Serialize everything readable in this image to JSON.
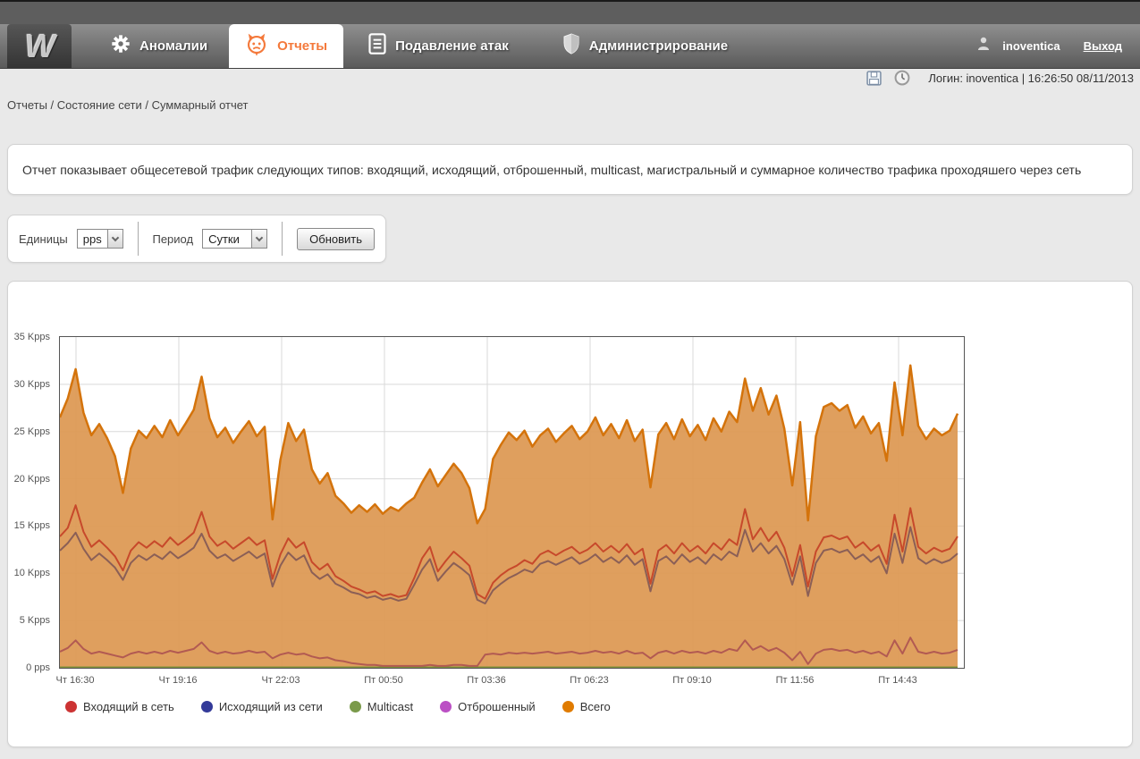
{
  "header": {
    "logo": "W",
    "tabs": [
      {
        "label": "Аномалии",
        "icon": "gear-icon",
        "active": false
      },
      {
        "label": "Отчеты",
        "icon": "devil-icon",
        "active": true
      },
      {
        "label": "Подавление атак",
        "icon": "document-icon",
        "active": false
      },
      {
        "label": "Администрирование",
        "icon": "shield-icon",
        "active": false
      }
    ],
    "user": "inoventica",
    "logout_label": "Выход"
  },
  "subheader": {
    "login_info": "Логин: inoventica | 16:26:50 08/11/2013"
  },
  "breadcrumb": "Отчеты / Состояние сети / Суммарный отчет",
  "description": "Отчет показывает общесетевой трафик следующих типов: входящий, исходящий, отброшенный, multicast, магистральный и суммарное количество трафика проходяшего через сеть",
  "controls": {
    "units_label": "Единицы",
    "units_value": "pps",
    "period_label": "Период",
    "period_value": "Сутки",
    "refresh_label": "Обновить"
  },
  "chart_data": {
    "type": "area",
    "unit": "Kpps",
    "ylim": [
      0,
      35
    ],
    "grid": true,
    "legend_position": "bottom",
    "y_ticks": [
      "0 pps",
      "5 Kpps",
      "10 Kpps",
      "15 Kpps",
      "20 Kpps",
      "25 Kpps",
      "30 Kpps",
      "35 Kpps"
    ],
    "y_tick_values": [
      0,
      5,
      10,
      15,
      20,
      25,
      30,
      35
    ],
    "x_ticks": [
      "Чт 16:30",
      "Чт 19:16",
      "Чт 22:03",
      "Пт 00:50",
      "Пт 03:36",
      "Пт 06:23",
      "Пт 09:10",
      "Пт 11:56",
      "Пт 14:43"
    ],
    "colors": {
      "grid": "#d9d9d9",
      "plot_border": "#555555",
      "axis_text": "#555555"
    },
    "series": [
      {
        "name": "Входящий в сеть",
        "color": "#cc3333",
        "line_color": "#c7492b",
        "values": [
          13.9,
          14.8,
          17.2,
          14.4,
          12.8,
          13.5,
          12.7,
          11.8,
          10.3,
          12.4,
          13.3,
          12.7,
          13.4,
          12.8,
          13.8,
          13.0,
          13.6,
          14.3,
          16.5,
          13.9,
          12.9,
          13.4,
          12.6,
          13.2,
          13.8,
          13.0,
          13.5,
          9.4,
          12.0,
          13.7,
          12.7,
          13.3,
          11.2,
          10.4,
          11.0,
          9.7,
          9.2,
          8.6,
          8.3,
          7.9,
          8.1,
          7.6,
          7.8,
          7.5,
          7.7,
          9.5,
          11.6,
          12.8,
          10.2,
          11.3,
          12.3,
          11.6,
          10.8,
          7.8,
          7.3,
          9.0,
          9.8,
          10.4,
          10.8,
          11.4,
          11.0,
          12.0,
          12.4,
          11.9,
          12.4,
          12.8,
          12.1,
          12.5,
          13.2,
          12.3,
          12.9,
          12.2,
          13.1,
          12.0,
          12.6,
          8.9,
          12.4,
          13.0,
          12.1,
          13.2,
          12.3,
          12.9,
          12.1,
          13.2,
          12.5,
          13.6,
          13.0,
          16.8,
          13.6,
          14.8,
          13.4,
          14.4,
          12.7,
          9.7,
          13.0,
          8.6,
          12.3,
          13.8,
          14.0,
          13.6,
          13.9,
          12.7,
          13.3,
          12.4,
          13.0,
          11.0,
          16.2,
          12.3,
          16.9,
          12.8,
          12.1,
          12.7,
          12.3,
          12.6,
          13.9
        ]
      },
      {
        "name": "Исходящий из сети",
        "color": "#333a99",
        "line_color": "#8b5f56",
        "values": [
          12.4,
          13.2,
          14.3,
          12.6,
          11.4,
          12.1,
          11.4,
          10.6,
          9.3,
          11.1,
          11.9,
          11.4,
          12.0,
          11.5,
          12.3,
          11.6,
          12.1,
          12.7,
          14.2,
          12.4,
          11.6,
          12.0,
          11.3,
          11.8,
          12.3,
          11.6,
          12.1,
          8.6,
          10.8,
          12.2,
          11.4,
          11.9,
          10.1,
          9.4,
          9.9,
          8.9,
          8.5,
          8.0,
          7.8,
          7.4,
          7.6,
          7.2,
          7.4,
          7.1,
          7.3,
          8.8,
          10.4,
          11.5,
          9.2,
          10.2,
          11.1,
          10.5,
          9.8,
          7.2,
          6.8,
          8.2,
          8.9,
          9.5,
          9.9,
          10.4,
          10.1,
          11.0,
          11.3,
          10.9,
          11.3,
          11.7,
          11.0,
          11.4,
          12.0,
          11.2,
          11.7,
          11.1,
          11.9,
          10.9,
          11.5,
          8.1,
          11.3,
          11.8,
          11.0,
          12.0,
          11.2,
          11.7,
          11.0,
          12.0,
          11.4,
          12.3,
          11.8,
          14.6,
          12.3,
          13.2,
          12.1,
          12.9,
          11.5,
          8.8,
          11.8,
          7.6,
          11.1,
          12.4,
          12.6,
          12.2,
          12.5,
          11.5,
          12.0,
          11.2,
          11.8,
          10.0,
          14.2,
          11.1,
          14.9,
          11.6,
          11.0,
          11.5,
          11.1,
          11.4,
          12.1
        ]
      },
      {
        "name": "Multicast",
        "color": "#7a9a4a",
        "line_color": "#7c8f3a",
        "constant": 0.05
      },
      {
        "name": "Отброшенный",
        "color": "#bb4fc4",
        "line_color": "#b25a52",
        "values": [
          1.7,
          2.1,
          2.9,
          2.0,
          1.5,
          1.7,
          1.5,
          1.3,
          1.1,
          1.5,
          1.7,
          1.5,
          1.7,
          1.5,
          1.8,
          1.6,
          1.8,
          2.0,
          2.7,
          1.8,
          1.5,
          1.7,
          1.5,
          1.6,
          1.8,
          1.6,
          1.7,
          1.0,
          1.4,
          1.6,
          1.4,
          1.5,
          1.2,
          1.0,
          1.1,
          0.8,
          0.7,
          0.5,
          0.4,
          0.3,
          0.3,
          0.2,
          0.2,
          0.2,
          0.2,
          0.2,
          0.2,
          0.3,
          0.2,
          0.2,
          0.3,
          0.3,
          0.2,
          0.2,
          1.4,
          1.5,
          1.4,
          1.6,
          1.5,
          1.6,
          1.5,
          1.6,
          1.7,
          1.5,
          1.6,
          1.7,
          1.5,
          1.6,
          1.8,
          1.6,
          1.7,
          1.5,
          1.8,
          1.5,
          1.6,
          1.0,
          1.6,
          1.8,
          1.5,
          1.8,
          1.6,
          1.7,
          1.5,
          1.8,
          1.6,
          2.0,
          1.8,
          2.9,
          1.9,
          2.3,
          1.8,
          2.1,
          1.6,
          0.8,
          1.7,
          0.4,
          1.5,
          1.9,
          2.0,
          1.8,
          1.9,
          1.6,
          1.8,
          1.5,
          1.7,
          1.2,
          2.9,
          1.5,
          3.2,
          1.7,
          1.5,
          1.7,
          1.5,
          1.6,
          1.9
        ]
      },
      {
        "name": "Всего",
        "color": "#e07b00",
        "line_color": "#d4730b",
        "fill": "#DD9A55",
        "fill_opacity": 0.95,
        "values": [
          26.5,
          28.5,
          31.6,
          27.0,
          24.6,
          25.8,
          24.3,
          22.4,
          18.5,
          23.2,
          25.1,
          24.3,
          25.6,
          24.4,
          26.2,
          24.6,
          25.9,
          27.3,
          30.8,
          26.4,
          24.4,
          25.4,
          23.8,
          25.0,
          26.1,
          24.5,
          25.5,
          15.7,
          22.0,
          25.9,
          24.0,
          25.2,
          21.0,
          19.5,
          20.6,
          18.2,
          17.4,
          16.4,
          17.2,
          16.5,
          17.3,
          16.3,
          17.0,
          16.6,
          17.4,
          18.0,
          19.6,
          21.0,
          19.2,
          20.4,
          21.6,
          20.6,
          19.0,
          15.3,
          16.8,
          22.1,
          23.6,
          24.9,
          24.1,
          25.1,
          23.4,
          24.6,
          25.3,
          23.9,
          24.8,
          25.6,
          24.2,
          25.0,
          26.5,
          24.6,
          25.8,
          24.3,
          26.2,
          24.0,
          25.2,
          19.1,
          24.7,
          25.9,
          24.2,
          26.3,
          24.5,
          25.7,
          24.1,
          26.4,
          25.0,
          27.1,
          26.0,
          30.6,
          27.2,
          29.6,
          26.8,
          28.8,
          25.3,
          19.3,
          26.0,
          15.6,
          24.5,
          27.6,
          28.0,
          27.2,
          27.8,
          25.4,
          26.6,
          24.8,
          25.9,
          21.9,
          30.2,
          24.6,
          32.0,
          25.6,
          24.2,
          25.3,
          24.6,
          25.1,
          26.9
        ]
      }
    ]
  }
}
